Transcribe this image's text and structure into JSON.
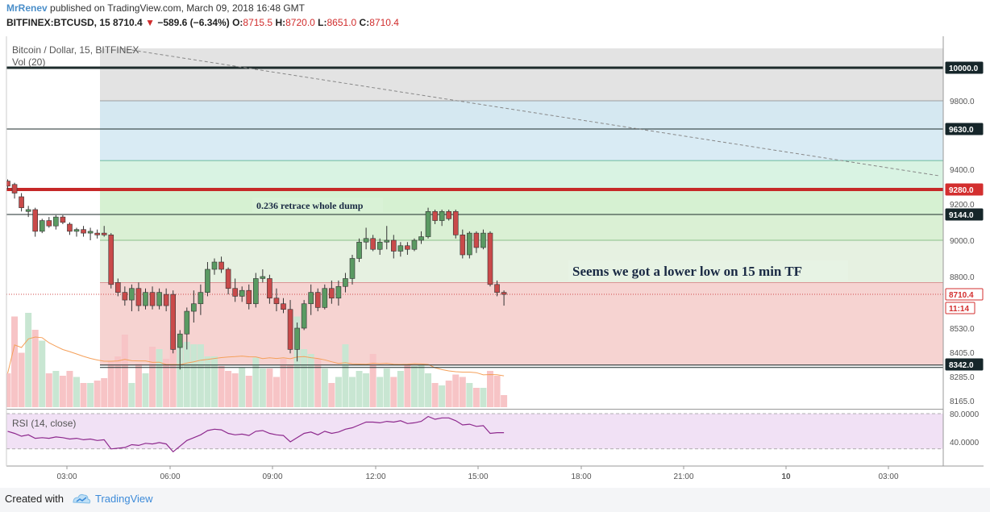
{
  "header": {
    "author": "MrRenev",
    "published": "published on TradingView.com, March 09, 2018 16:48 GMT",
    "symbol": "BITFINEX:BTCUSD, 15",
    "last": "8710.4",
    "change": "−589.6 (−6.34%)",
    "o_label": "O:",
    "o": "8715.5",
    "h_label": "H:",
    "h": "8720.0",
    "l_label": "L:",
    "l": "8651.0",
    "c_label": "C:",
    "c": "8710.4"
  },
  "footer": {
    "created": "Created with",
    "brand": "TradingView"
  },
  "colors": {
    "up": "#5a9a62",
    "down": "#c94a4a",
    "vol_up": "#c8e6d2",
    "vol_down": "#f7c4c6",
    "rsi": "#8e2a8e",
    "vol_ma": "#f5a05a"
  },
  "chart_data": {
    "type": "candlestick",
    "title": "Bitcoin / Dollar, 15, BITFINEX",
    "volume_label": "Vol (20)",
    "rsi_label": "RSI (14, close)",
    "x_ticks": [
      "03:00",
      "06:00",
      "09:00",
      "12:00",
      "15:00",
      "18:00",
      "21:00",
      "10",
      "03:00"
    ],
    "y_ticks": [
      "9800.0",
      "9400.0",
      "9200.0",
      "9000.0",
      "8800.0",
      "8530.0",
      "8405.0",
      "8285.0",
      "8165.0"
    ],
    "rsi_ticks": [
      "80.0000",
      "40.0000"
    ],
    "price_badges": [
      {
        "label": "10000.0",
        "kind": "dark"
      },
      {
        "label": "9630.0",
        "kind": "dark"
      },
      {
        "label": "9280.0",
        "kind": "red"
      },
      {
        "label": "9144.0",
        "kind": "dark"
      },
      {
        "label": "8710.4",
        "kind": "current"
      },
      {
        "label": "11:14",
        "kind": "timer"
      },
      {
        "label": "8342.0",
        "kind": "dark"
      }
    ],
    "levels": [
      10000,
      9630,
      9280,
      9144,
      8342
    ],
    "annotations": [
      "0.236 retrace whole dump",
      "Seems we got a lower low on 15 min TF"
    ],
    "candles": [
      [
        9330,
        9340,
        9280,
        9300
      ],
      [
        9310,
        9320,
        9230,
        9260
      ],
      [
        9240,
        9260,
        9160,
        9180
      ],
      [
        9160,
        9190,
        9130,
        9170
      ],
      [
        9170,
        9180,
        9020,
        9050
      ],
      [
        9050,
        9120,
        9040,
        9110
      ],
      [
        9110,
        9130,
        9070,
        9080
      ],
      [
        9080,
        9140,
        9060,
        9130
      ],
      [
        9130,
        9140,
        9090,
        9100
      ],
      [
        9090,
        9100,
        9030,
        9050
      ],
      [
        9050,
        9070,
        9020,
        9060
      ],
      [
        9060,
        9080,
        9020,
        9040
      ],
      [
        9040,
        9070,
        9000,
        9050
      ],
      [
        9040,
        9060,
        9010,
        9030
      ],
      [
        9040,
        9080,
        9020,
        9030
      ],
      [
        9030,
        9040,
        8740,
        8760
      ],
      [
        8770,
        8790,
        8700,
        8720
      ],
      [
        8720,
        8750,
        8650,
        8680
      ],
      [
        8680,
        8760,
        8620,
        8740
      ],
      [
        8740,
        8770,
        8620,
        8650
      ],
      [
        8650,
        8740,
        8630,
        8720
      ],
      [
        8720,
        8750,
        8630,
        8650
      ],
      [
        8650,
        8740,
        8630,
        8720
      ],
      [
        8710,
        8740,
        8620,
        8650
      ],
      [
        8710,
        8730,
        8400,
        8420
      ],
      [
        8430,
        8520,
        8320,
        8500
      ],
      [
        8500,
        8640,
        8420,
        8620
      ],
      [
        8620,
        8730,
        8560,
        8660
      ],
      [
        8660,
        8760,
        8600,
        8720
      ],
      [
        8720,
        8880,
        8700,
        8840
      ],
      [
        8840,
        8900,
        8810,
        8880
      ],
      [
        8880,
        8910,
        8820,
        8840
      ],
      [
        8840,
        8850,
        8710,
        8740
      ],
      [
        8740,
        8790,
        8670,
        8700
      ],
      [
        8700,
        8750,
        8670,
        8730
      ],
      [
        8730,
        8760,
        8630,
        8660
      ],
      [
        8660,
        8820,
        8640,
        8790
      ],
      [
        8790,
        8840,
        8770,
        8800
      ],
      [
        8790,
        8810,
        8660,
        8690
      ],
      [
        8690,
        8740,
        8620,
        8660
      ],
      [
        8660,
        8690,
        8610,
        8630
      ],
      [
        8630,
        8680,
        8400,
        8420
      ],
      [
        8420,
        8560,
        8360,
        8530
      ],
      [
        8530,
        8680,
        8520,
        8660
      ],
      [
        8660,
        8760,
        8600,
        8720
      ],
      [
        8720,
        8740,
        8620,
        8640
      ],
      [
        8640,
        8760,
        8630,
        8740
      ],
      [
        8740,
        8780,
        8660,
        8690
      ],
      [
        8690,
        8780,
        8650,
        8750
      ],
      [
        8750,
        8820,
        8720,
        8790
      ],
      [
        8790,
        8920,
        8760,
        8900
      ],
      [
        8900,
        9010,
        8880,
        8990
      ],
      [
        8990,
        9070,
        8950,
        9010
      ],
      [
        9010,
        9030,
        8940,
        8950
      ],
      [
        8950,
        9010,
        8920,
        8990
      ],
      [
        8990,
        9080,
        8950,
        9000
      ],
      [
        9000,
        9030,
        8900,
        8940
      ],
      [
        8940,
        8990,
        8910,
        8970
      ],
      [
        8970,
        8990,
        8920,
        8950
      ],
      [
        8950,
        9010,
        8940,
        9000
      ],
      [
        9000,
        9050,
        8980,
        9020
      ],
      [
        9020,
        9180,
        9010,
        9160
      ],
      [
        9160,
        9170,
        9090,
        9110
      ],
      [
        9110,
        9170,
        9080,
        9160
      ],
      [
        9160,
        9170,
        9110,
        9120
      ],
      [
        9160,
        9170,
        9010,
        9030
      ],
      [
        9030,
        9060,
        8900,
        8920
      ],
      [
        8920,
        9050,
        8900,
        9040
      ],
      [
        9040,
        9050,
        8930,
        8960
      ],
      [
        8960,
        9060,
        8950,
        9040
      ],
      [
        9040,
        9050,
        8750,
        8760
      ],
      [
        8760,
        8780,
        8700,
        8720
      ],
      [
        8720,
        8730,
        8650,
        8710
      ]
    ],
    "volume": [
      28,
      75,
      45,
      78,
      64,
      55,
      28,
      30,
      26,
      30,
      25,
      20,
      20,
      22,
      24,
      38,
      42,
      60,
      20,
      36,
      28,
      50,
      48,
      40,
      63,
      53,
      54,
      52,
      52,
      42,
      42,
      34,
      30,
      28,
      33,
      26,
      41,
      32,
      32,
      25,
      40,
      35,
      75,
      48,
      44,
      40,
      32,
      20,
      25,
      52,
      25,
      30,
      28,
      44,
      25,
      32,
      25,
      30,
      35,
      34,
      35,
      28,
      20,
      18,
      22,
      27,
      25,
      20,
      16,
      16,
      30,
      26,
      10
    ],
    "rsi": [
      55,
      52,
      48,
      50,
      45,
      46,
      45,
      47,
      46,
      44,
      45,
      43,
      44,
      42,
      43,
      30,
      31,
      32,
      36,
      35,
      38,
      37,
      39,
      37,
      26,
      34,
      42,
      46,
      50,
      56,
      58,
      57,
      52,
      50,
      51,
      49,
      55,
      56,
      52,
      50,
      49,
      40,
      46,
      52,
      54,
      50,
      55,
      52,
      54,
      58,
      60,
      64,
      68,
      68,
      67,
      69,
      68,
      70,
      66,
      67,
      69,
      76,
      72,
      74,
      74,
      70,
      64,
      65,
      62,
      63,
      52,
      53,
      53
    ]
  }
}
